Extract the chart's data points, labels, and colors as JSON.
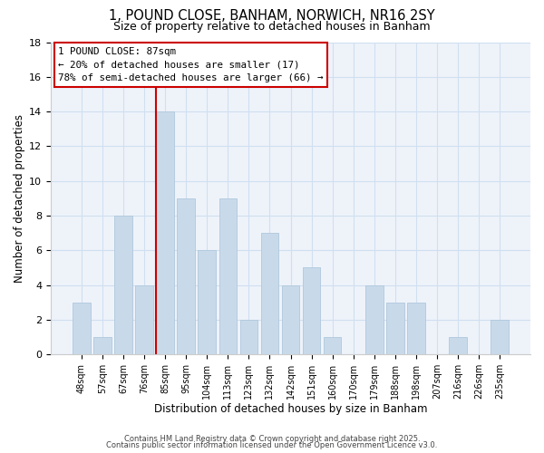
{
  "title_line1": "1, POUND CLOSE, BANHAM, NORWICH, NR16 2SY",
  "title_line2": "Size of property relative to detached houses in Banham",
  "xlabel": "Distribution of detached houses by size in Banham",
  "ylabel": "Number of detached properties",
  "bar_color": "#c8daea",
  "bar_edgecolor": "#b0c8dc",
  "categories": [
    "48sqm",
    "57sqm",
    "67sqm",
    "76sqm",
    "85sqm",
    "95sqm",
    "104sqm",
    "113sqm",
    "123sqm",
    "132sqm",
    "142sqm",
    "151sqm",
    "160sqm",
    "170sqm",
    "179sqm",
    "188sqm",
    "198sqm",
    "207sqm",
    "216sqm",
    "226sqm",
    "235sqm"
  ],
  "values": [
    3,
    1,
    8,
    4,
    14,
    9,
    6,
    9,
    2,
    7,
    4,
    5,
    1,
    0,
    4,
    3,
    3,
    0,
    1,
    0,
    2
  ],
  "ylim": [
    0,
    18
  ],
  "yticks": [
    0,
    2,
    4,
    6,
    8,
    10,
    12,
    14,
    16,
    18
  ],
  "vline_index": 4,
  "vline_color": "#cc0000",
  "annotation_title": "1 POUND CLOSE: 87sqm",
  "annotation_line2": "← 20% of detached houses are smaller (17)",
  "annotation_line3": "78% of semi-detached houses are larger (66) →",
  "footer_line1": "Contains HM Land Registry data © Crown copyright and database right 2025.",
  "footer_line2": "Contains public sector information licensed under the Open Government Licence v3.0.",
  "grid_color": "#d0dff0",
  "background_color": "#eef3fa"
}
